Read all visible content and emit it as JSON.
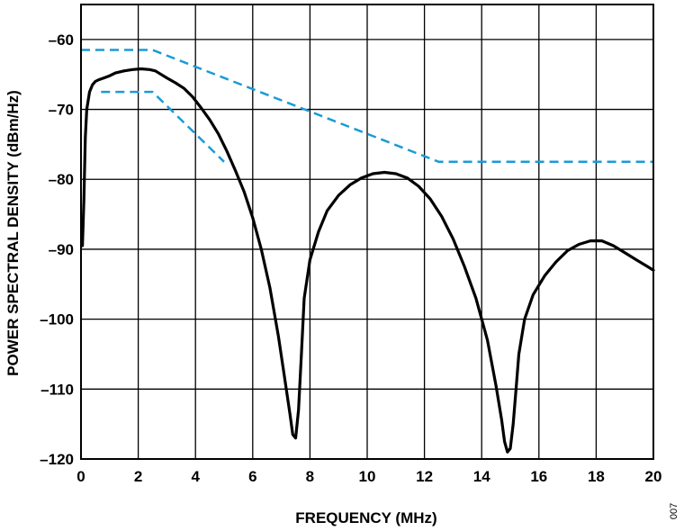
{
  "chart_data": {
    "type": "line",
    "title": "",
    "xlabel": "FREQUENCY (MHz)",
    "ylabel": "POWER SPECTRAL DENSITY (dBm/Hz)",
    "xlim": [
      0,
      20
    ],
    "ylim": [
      -120,
      -55
    ],
    "xticks": [
      0,
      2,
      4,
      6,
      8,
      10,
      12,
      14,
      16,
      18,
      20
    ],
    "yticks": [
      -60,
      -70,
      -80,
      -90,
      -100,
      -110,
      -120
    ],
    "xtick_labels": [
      "0",
      "2",
      "4",
      "6",
      "8",
      "10",
      "12",
      "14",
      "16",
      "18",
      "20"
    ],
    "ytick_labels": [
      "–60",
      "–70",
      "–80",
      "–90",
      "–100",
      "–110",
      "–120"
    ],
    "grid": true,
    "figure_id": "007",
    "series": [
      {
        "color": "#000000",
        "style": "solid",
        "x": [
          0.05,
          0.1,
          0.15,
          0.2,
          0.3,
          0.4,
          0.5,
          0.6,
          0.8,
          1.0,
          1.2,
          1.5,
          1.8,
          2.1,
          2.4,
          2.6,
          2.8,
          3.0,
          3.3,
          3.6,
          3.9,
          4.2,
          4.5,
          4.8,
          5.1,
          5.4,
          5.7,
          6.0,
          6.3,
          6.6,
          6.9,
          7.1,
          7.3,
          7.4,
          7.5,
          7.6,
          7.7,
          7.8,
          8.0,
          8.3,
          8.6,
          9.0,
          9.4,
          9.8,
          10.2,
          10.6,
          11.0,
          11.4,
          11.8,
          12.2,
          12.6,
          13.0,
          13.4,
          13.8,
          14.2,
          14.5,
          14.7,
          14.8,
          14.9,
          15.0,
          15.1,
          15.2,
          15.3,
          15.5,
          15.8,
          16.2,
          16.6,
          17.0,
          17.4,
          17.8,
          18.2,
          18.6,
          19.0,
          19.4,
          19.8,
          20.0
        ],
        "y": [
          -89.5,
          -83,
          -74,
          -70,
          -67.5,
          -66.5,
          -66,
          -65.8,
          -65.5,
          -65.2,
          -64.8,
          -64.5,
          -64.3,
          -64.2,
          -64.3,
          -64.5,
          -65,
          -65.5,
          -66.2,
          -67,
          -68.2,
          -69.8,
          -71.5,
          -73.5,
          -76,
          -78.8,
          -81.8,
          -85.5,
          -90,
          -95.5,
          -102.5,
          -108,
          -113.5,
          -116.5,
          -117,
          -113,
          -105,
          -97,
          -91.5,
          -87.5,
          -84.5,
          -82.3,
          -80.8,
          -79.8,
          -79.2,
          -79,
          -79.2,
          -79.8,
          -81,
          -82.8,
          -85.3,
          -88.5,
          -92.5,
          -97,
          -103,
          -109.5,
          -114.5,
          -117.5,
          -119,
          -118.5,
          -115,
          -110,
          -105,
          -100,
          -96.5,
          -93.8,
          -91.8,
          -90.2,
          -89.3,
          -88.8,
          -88.8,
          -89.5,
          -90.5,
          -91.5,
          -92.5,
          -93
        ]
      },
      {
        "color": "#1a9bd7",
        "style": "dashed",
        "x": [
          0,
          2.5,
          12.5,
          20
        ],
        "y": [
          -61.5,
          -61.5,
          -77.5,
          -77.5
        ]
      },
      {
        "color": "#1a9bd7",
        "style": "dashed",
        "x": [
          0.7,
          2.5,
          5
        ],
        "y": [
          -67.5,
          -67.5,
          -77.5
        ]
      }
    ]
  }
}
